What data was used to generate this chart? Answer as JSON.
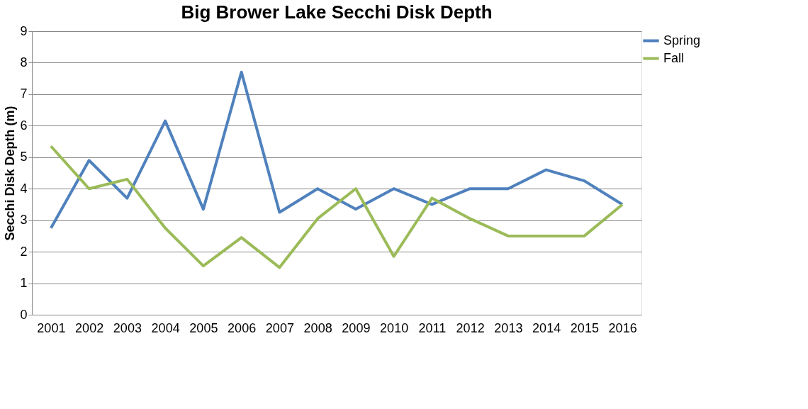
{
  "chart_data": {
    "type": "line",
    "title": "Big Brower Lake Secchi Disk Depth",
    "ylabel": "Secchi Disk Depth (m)",
    "categories": [
      "2001",
      "2002",
      "2003",
      "2004",
      "2005",
      "2006",
      "2007",
      "2008",
      "2009",
      "2010",
      "2011",
      "2012",
      "2013",
      "2014",
      "2015",
      "2016"
    ],
    "series": [
      {
        "name": "Spring",
        "color": "#4f81bd",
        "values": [
          2.75,
          4.9,
          3.7,
          6.15,
          3.35,
          7.7,
          3.25,
          4.0,
          3.35,
          4.0,
          3.5,
          4.0,
          4.0,
          4.6,
          4.25,
          3.5
        ]
      },
      {
        "name": "Fall",
        "color": "#9bbb59",
        "values": [
          5.35,
          4.0,
          4.3,
          2.75,
          1.55,
          2.45,
          1.5,
          3.05,
          4.0,
          1.85,
          3.7,
          3.05,
          2.5,
          2.5,
          2.5,
          3.5
        ]
      }
    ],
    "ylim": [
      0,
      9
    ],
    "yticks": [
      0,
      1,
      2,
      3,
      4,
      5,
      6,
      7,
      8,
      9
    ],
    "grid": "y",
    "legend": "top right",
    "marker": "none",
    "line_style": "solid"
  }
}
